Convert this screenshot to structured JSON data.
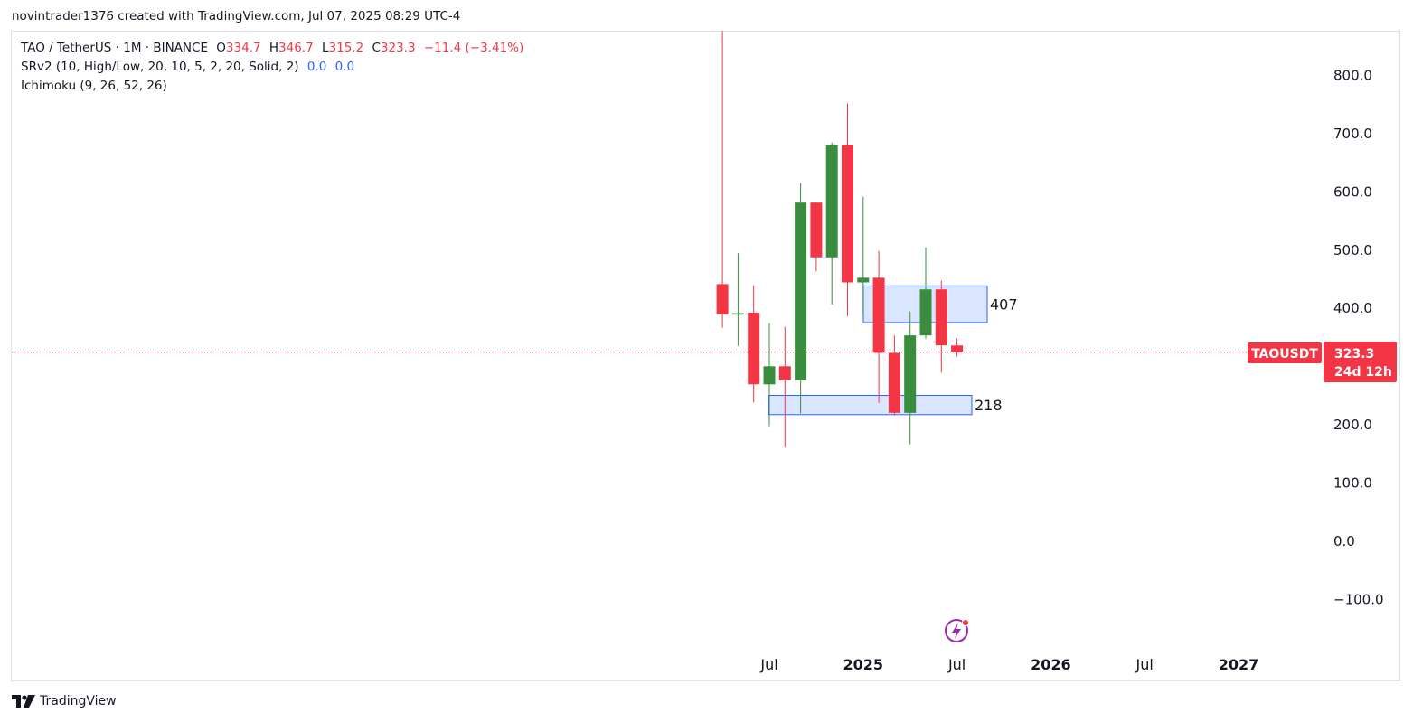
{
  "header": {
    "created_by": "novintrader1376 created with TradingView.com, Jul 07, 2025 08:29 UTC-4"
  },
  "legend": {
    "symbol": "TAO / TetherUS · 1M · BINANCE",
    "o_label": "O",
    "o_value": "334.7",
    "h_label": "H",
    "h_value": "346.7",
    "l_label": "L",
    "l_value": "315.2",
    "c_label": "C",
    "c_value": "323.3",
    "change": "−11.4 (−3.41%)",
    "indicator1_name": "SRv2 (10, High/Low, 20, 10, 5, 2, 20, Solid, 2)",
    "indicator1_v1": "0.0",
    "indicator1_v2": "0.0",
    "indicator2_name": "Ichimoku (9, 26, 52, 26)"
  },
  "price_tag": {
    "symbol": "TAOUSDT",
    "price": "323.3",
    "countdown": "24d 12h"
  },
  "zones": [
    {
      "label": "407",
      "top": 437,
      "bottom": 374
    },
    {
      "label": "218",
      "top": 249,
      "bottom": 216
    }
  ],
  "footer": {
    "brand": "TradingView"
  },
  "colors": {
    "up": "#388e3c",
    "down": "#f23645",
    "zone_fill": "#d4e0ff",
    "zone_border": "#2962ff",
    "legend_blue": "#2962ff"
  },
  "chart_data": {
    "type": "candlestick",
    "title": "TAO / TetherUS · 1M · BINANCE",
    "y_ticks": [
      800,
      700,
      600,
      500,
      400,
      300,
      200,
      100,
      0,
      -100
    ],
    "y_tick_labels": [
      "800.0",
      "700.0",
      "600.0",
      "500.0",
      "400.0",
      "",
      "200.0",
      "100.0",
      "0.0",
      "−100.0"
    ],
    "x_tick_labels": [
      {
        "label": "Jul",
        "bold": false,
        "x": "2024-07"
      },
      {
        "label": "2025",
        "bold": true,
        "x": "2025-01"
      },
      {
        "label": "Jul",
        "bold": false,
        "x": "2025-07"
      },
      {
        "label": "2026",
        "bold": true,
        "x": "2026-01"
      },
      {
        "label": "Jul",
        "bold": false,
        "x": "2026-07"
      },
      {
        "label": "2027",
        "bold": true,
        "x": "2027-01"
      }
    ],
    "last_price": 323.3,
    "candles": [
      {
        "t": "2024-04",
        "o": 440,
        "h": 875,
        "l": 365,
        "c": 388
      },
      {
        "t": "2024-05",
        "o": 388,
        "h": 493,
        "l": 334,
        "c": 390
      },
      {
        "t": "2024-06",
        "o": 391,
        "h": 438,
        "l": 237,
        "c": 268
      },
      {
        "t": "2024-07",
        "o": 268,
        "h": 373,
        "l": 196,
        "c": 299
      },
      {
        "t": "2024-08",
        "o": 299,
        "h": 367,
        "l": 160,
        "c": 275
      },
      {
        "t": "2024-09",
        "o": 275,
        "h": 613,
        "l": 218,
        "c": 580
      },
      {
        "t": "2024-10",
        "o": 580,
        "h": 580,
        "l": 462,
        "c": 486
      },
      {
        "t": "2024-11",
        "o": 486,
        "h": 683,
        "l": 405,
        "c": 679
      },
      {
        "t": "2024-12",
        "o": 679,
        "h": 750,
        "l": 385,
        "c": 443
      },
      {
        "t": "2025-01",
        "o": 443,
        "h": 590,
        "l": 387,
        "c": 451
      },
      {
        "t": "2025-02",
        "o": 451,
        "h": 497,
        "l": 236,
        "c": 322
      },
      {
        "t": "2025-03",
        "o": 322,
        "h": 352,
        "l": 215,
        "c": 219
      },
      {
        "t": "2025-04",
        "o": 219,
        "h": 393,
        "l": 165,
        "c": 352
      },
      {
        "t": "2025-05",
        "o": 352,
        "h": 503,
        "l": 346,
        "c": 431
      },
      {
        "t": "2025-06",
        "o": 431,
        "h": 446,
        "l": 288,
        "c": 335
      },
      {
        "t": "2025-07",
        "o": 334.7,
        "h": 346.7,
        "l": 315.2,
        "c": 323.3
      }
    ]
  }
}
